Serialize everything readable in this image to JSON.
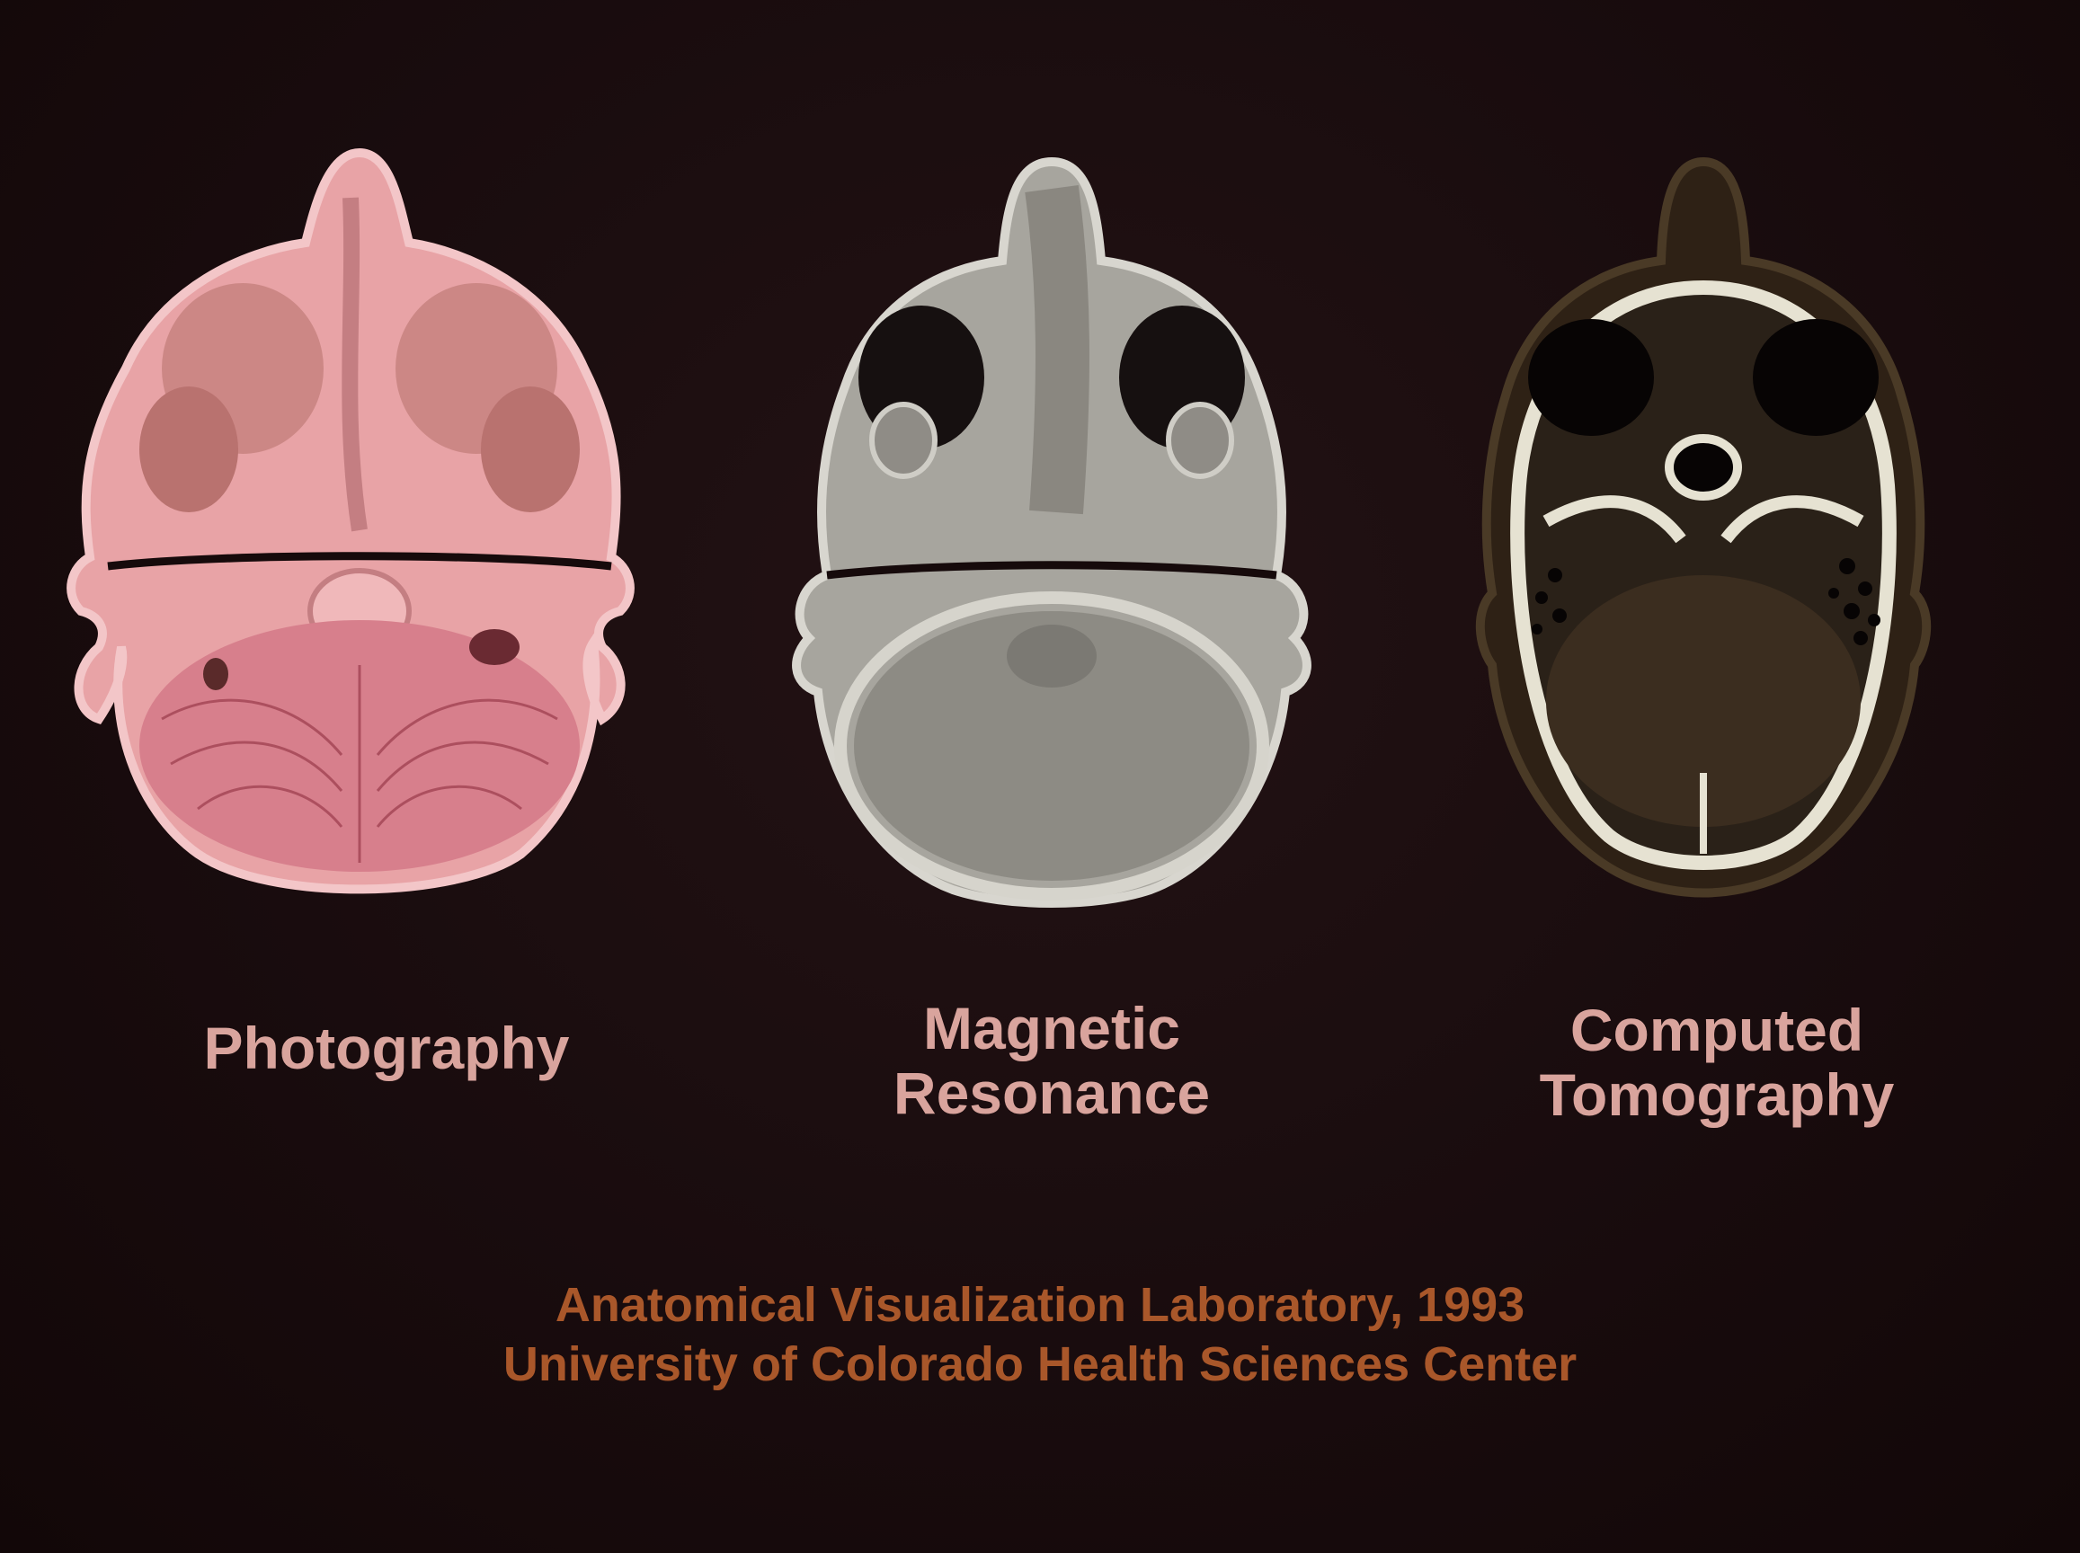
{
  "panels": [
    {
      "id": "photo",
      "label_lines": [
        "Photography"
      ]
    },
    {
      "id": "mri",
      "label_lines": [
        "Magnetic",
        "Resonance"
      ]
    },
    {
      "id": "ct",
      "label_lines": [
        "Computed",
        "Tomography"
      ]
    }
  ],
  "credit": {
    "line1": "Anatomical Visualization Laboratory, 1993",
    "line2": "University of Colorado Health Sciences Center"
  },
  "colors": {
    "background": "#160a0b",
    "label_text": "#d9a49d",
    "credit_text": "#a9572a",
    "photo_tissue": "#e8a3a6",
    "mri_tissue": "#9c9a93",
    "ct_bone": "#e6e2d2"
  }
}
